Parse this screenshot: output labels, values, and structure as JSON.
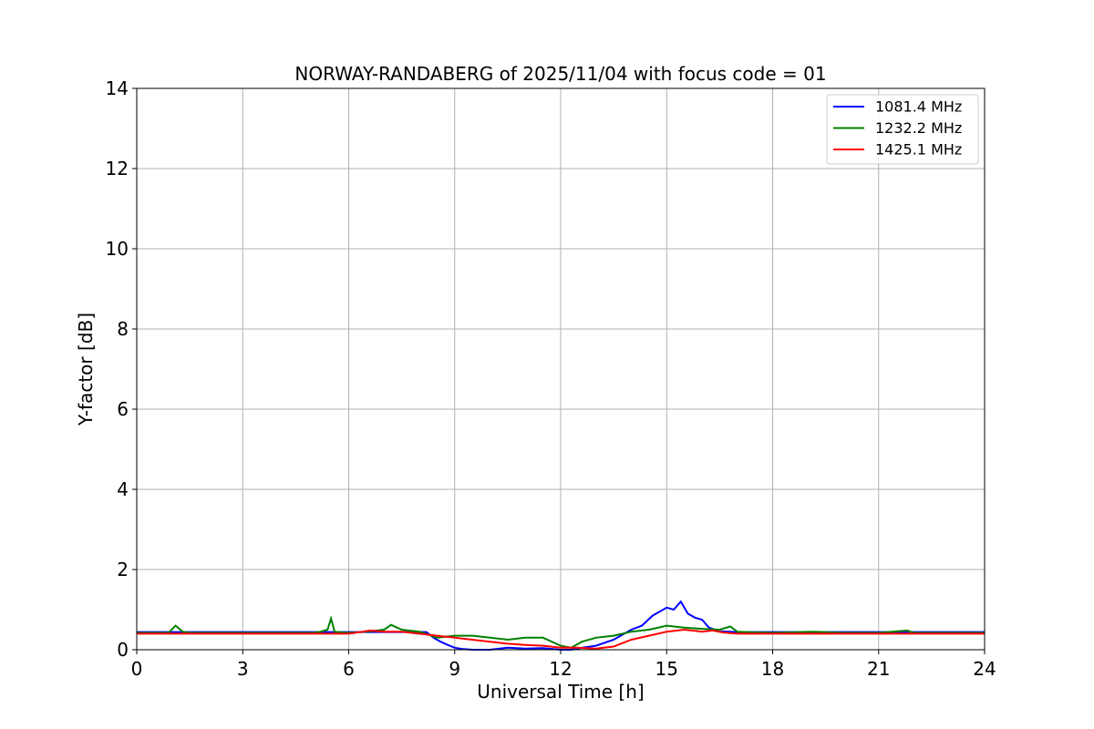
{
  "chart_data": {
    "type": "line",
    "title": "NORWAY-RANDABERG of 2025/11/04 with focus code = 01",
    "xlabel": "Universal Time [h]",
    "ylabel": "Y-factor [dB]",
    "xlim": [
      0,
      24
    ],
    "ylim": [
      0,
      14
    ],
    "xticks": [
      0,
      3,
      6,
      9,
      12,
      15,
      18,
      21,
      24
    ],
    "yticks": [
      0,
      2,
      4,
      6,
      8,
      10,
      12,
      14
    ],
    "grid": true,
    "legend_position": "top-right",
    "series": [
      {
        "name": "1081.4 MHz",
        "color": "#0000ff",
        "x": [
          0,
          1,
          2,
          3,
          4,
          5,
          6,
          7,
          8.2,
          8.4,
          8.6,
          8.8,
          9.0,
          9.2,
          9.5,
          10.0,
          10.5,
          11.0,
          11.5,
          12.0,
          12.3,
          12.6,
          13.0,
          13.5,
          13.8,
          14.0,
          14.3,
          14.6,
          14.8,
          15.0,
          15.2,
          15.4,
          15.6,
          15.8,
          16.0,
          16.2,
          16.5,
          17.0,
          18,
          19,
          20,
          21,
          22,
          23,
          24
        ],
        "y": [
          0.44,
          0.44,
          0.44,
          0.44,
          0.44,
          0.44,
          0.44,
          0.44,
          0.44,
          0.3,
          0.2,
          0.12,
          0.05,
          0.02,
          0.0,
          0.0,
          0.05,
          0.03,
          0.04,
          0.0,
          0.0,
          0.05,
          0.1,
          0.25,
          0.4,
          0.5,
          0.6,
          0.85,
          0.95,
          1.05,
          1.0,
          1.2,
          0.9,
          0.8,
          0.75,
          0.55,
          0.46,
          0.44,
          0.44,
          0.44,
          0.44,
          0.44,
          0.44,
          0.44,
          0.44
        ]
      },
      {
        "name": "1232.2 MHz",
        "color": "#008000",
        "x": [
          0,
          0.9,
          1.1,
          1.3,
          1.5,
          2,
          3,
          4,
          5.0,
          5.2,
          5.4,
          5.5,
          5.6,
          6.0,
          6.5,
          7.0,
          7.2,
          7.5,
          8.0,
          8.5,
          9.0,
          9.5,
          10.0,
          10.5,
          11.0,
          11.5,
          12.0,
          12.3,
          12.6,
          13.0,
          13.5,
          14.0,
          14.5,
          15.0,
          15.5,
          16.0,
          16.5,
          16.8,
          17.0,
          18,
          19.2,
          20,
          21,
          21.8,
          22.0,
          23,
          24
        ],
        "y": [
          0.42,
          0.42,
          0.6,
          0.45,
          0.42,
          0.42,
          0.42,
          0.42,
          0.42,
          0.45,
          0.5,
          0.78,
          0.45,
          0.42,
          0.45,
          0.5,
          0.62,
          0.5,
          0.45,
          0.3,
          0.35,
          0.35,
          0.3,
          0.25,
          0.3,
          0.3,
          0.1,
          0.05,
          0.2,
          0.3,
          0.35,
          0.45,
          0.5,
          0.6,
          0.55,
          0.52,
          0.5,
          0.58,
          0.45,
          0.42,
          0.45,
          0.42,
          0.42,
          0.48,
          0.42,
          0.42,
          0.42
        ]
      },
      {
        "name": "1425.1 MHz",
        "color": "#ff0000",
        "x": [
          0,
          1,
          2,
          3,
          4,
          5,
          6,
          6.4,
          6.6,
          7.0,
          7.5,
          8.0,
          8.5,
          9.0,
          9.5,
          10.0,
          10.5,
          11.0,
          11.5,
          12.0,
          12.5,
          13.0,
          13.5,
          14.0,
          14.5,
          15.0,
          15.5,
          16.0,
          16.3,
          16.6,
          17.0,
          18,
          19,
          20,
          21,
          22,
          23,
          24
        ],
        "y": [
          0.4,
          0.4,
          0.4,
          0.4,
          0.4,
          0.4,
          0.4,
          0.45,
          0.48,
          0.45,
          0.45,
          0.4,
          0.35,
          0.3,
          0.25,
          0.2,
          0.15,
          0.12,
          0.1,
          0.05,
          0.05,
          0.03,
          0.08,
          0.25,
          0.35,
          0.45,
          0.5,
          0.45,
          0.48,
          0.43,
          0.4,
          0.4,
          0.4,
          0.4,
          0.4,
          0.4,
          0.4,
          0.4
        ]
      }
    ]
  }
}
